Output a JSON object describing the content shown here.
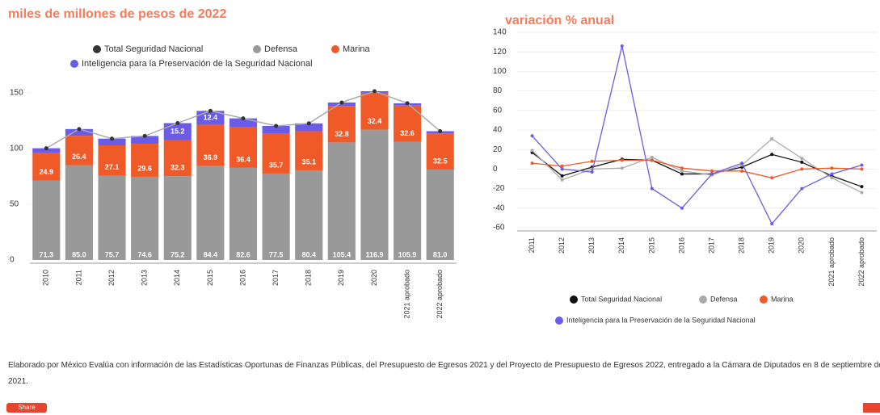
{
  "chart_data": [
    {
      "type": "bar",
      "stacked": true,
      "title": "miles de millones de pesos de 2022",
      "categories": [
        "2010",
        "2011",
        "2012",
        "2013",
        "2014",
        "2015",
        "2016",
        "2017",
        "2018",
        "2019",
        "2020",
        "2021 aprobado",
        "2022 aprobado"
      ],
      "series": [
        {
          "name": "Total Seguridad Nacional",
          "color": "#333333",
          "type": "line",
          "values": [
            100.2,
            117.4,
            108.8,
            111.2,
            122.7,
            133.7,
            127.0,
            120.2,
            122.5,
            141.2,
            151.3,
            140.5,
            115.5
          ]
        },
        {
          "name": "Defensa",
          "color": "#999999",
          "values": [
            71.3,
            85,
            75.7,
            74.6,
            75.2,
            84.4,
            82.6,
            77.5,
            80.4,
            105.4,
            116.9,
            105.9,
            81
          ],
          "value_labels": [
            "71.3",
            "85.0",
            "75.7",
            "74.6",
            "75.2",
            "84.4",
            "82.6",
            "77.5",
            "80.4",
            "105.4",
            "116.9",
            "105.9",
            "81.0"
          ]
        },
        {
          "name": "Marina",
          "color": "#f05a28",
          "values": [
            24.9,
            26.4,
            27.1,
            29.6,
            32.3,
            36.9,
            36.4,
            35.7,
            35.1,
            32.8,
            32.4,
            32.6,
            32.5
          ],
          "value_labels": [
            "24.9",
            "26.4",
            "27.1",
            "29.6",
            "32.3",
            "36.9",
            "36.4",
            "35.7",
            "35.1",
            "32.8",
            "32.4",
            "32.6",
            "32.5"
          ]
        },
        {
          "name": "Inteligencia para la Preservación de la Seguridad Nacional",
          "color": "#6b5ce7",
          "values": [
            4,
            6,
            6,
            7,
            15.2,
            12.4,
            8,
            7,
            7,
            3,
            2,
            2,
            2
          ],
          "value_labels": [
            null,
            null,
            null,
            null,
            "15.2",
            "12.4",
            null,
            null,
            null,
            null,
            null,
            null,
            null
          ]
        }
      ],
      "ylim": [
        0,
        160
      ],
      "yticks": [
        0,
        50,
        100,
        150
      ],
      "grid": false
    },
    {
      "type": "line",
      "title": "variación % anual",
      "categories": [
        "2011",
        "2012",
        "2013",
        "2014",
        "2015",
        "2016",
        "2017",
        "2018",
        "2019",
        "2020",
        "2021 aprobado",
        "2022 aprobado"
      ],
      "series": [
        {
          "name": "Total Seguridad Nacional",
          "color": "#111111",
          "values": [
            17,
            -7,
            2,
            10,
            9,
            -5,
            -5,
            2,
            15,
            7,
            -7,
            -18
          ]
        },
        {
          "name": "Defensa",
          "color": "#aaaaaa",
          "values": [
            19,
            -11,
            0,
            1,
            12,
            -2,
            -6,
            4,
            31,
            11,
            -9,
            -24
          ]
        },
        {
          "name": "Marina",
          "color": "#f05a28",
          "values": [
            6,
            3,
            8,
            9,
            9,
            1,
            -2,
            -2,
            -9,
            0,
            1,
            0
          ]
        },
        {
          "name": "Inteligencia para la Preservación de la Seguridad Nacional",
          "color": "#6b5ce7",
          "values": [
            34,
            0,
            -3,
            126,
            -20,
            -40,
            -5,
            6,
            -56,
            -20,
            -5,
            4
          ]
        }
      ],
      "ylim": [
        -60,
        140
      ],
      "yticks": [
        -60,
        -40,
        -20,
        0,
        20,
        40,
        60,
        80,
        100,
        120,
        140
      ],
      "grid": true
    }
  ],
  "footnote": "Elaborado por México Evalúa con información de las Estadísticas Oportunas de Finanzas Públicas, del Presupuesto de Egresos 2021 y del Proyecto de Presupuesto de Egresos 2022, entregado a la Cámara de Diputados en 8 de septiembre de 2021.",
  "share": "Share"
}
